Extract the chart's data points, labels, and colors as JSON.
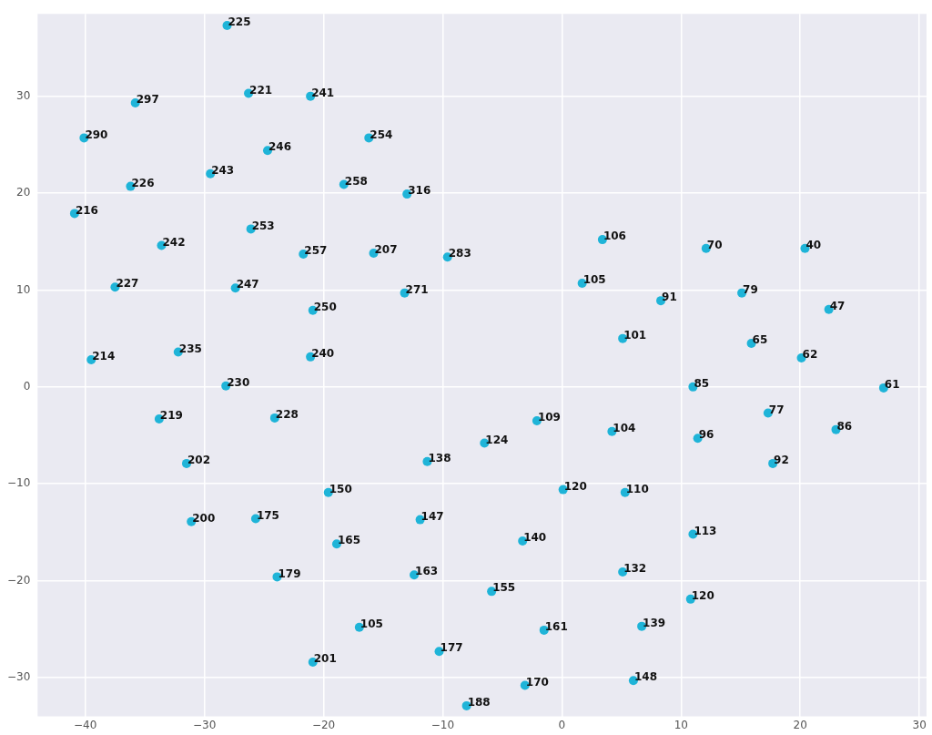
{
  "chart_data": {
    "type": "scatter",
    "xlim": [
      -44,
      30.6
    ],
    "ylim": [
      -34,
      38.5
    ],
    "xticks": [
      -40,
      -30,
      -20,
      -10,
      0,
      10,
      20,
      30
    ],
    "yticks": [
      -30,
      -20,
      -10,
      0,
      10,
      20,
      30
    ],
    "grid": true,
    "marker": "circle",
    "series": [
      {
        "color": "#1fb4d8",
        "x": [
          -28.1,
          -26.3,
          -21.1,
          -35.8,
          -40.1,
          -16.2,
          -24.7,
          -29.5,
          -36.2,
          -18.3,
          -13.0,
          -40.9,
          -26.1,
          -33.6,
          -21.7,
          -15.8,
          -9.6,
          -37.5,
          -27.4,
          -13.2,
          -20.9,
          -39.5,
          -32.2,
          -21.1,
          -28.2,
          -33.8,
          -24.1,
          -31.5,
          -19.6,
          -31.1,
          -25.7,
          -18.9,
          -23.9,
          -17.0,
          -20.9,
          -11.3,
          -11.9,
          -12.4,
          -10.3,
          -8.0,
          -6.5,
          0.1,
          5.3,
          -3.3,
          11.0,
          5.1,
          -5.9,
          10.8,
          -1.5,
          6.7,
          6.0,
          -3.1,
          3.4,
          12.1,
          20.4,
          1.7,
          8.3,
          15.1,
          22.4,
          5.1,
          15.9,
          20.1,
          11.0,
          27.0,
          -2.1,
          4.2,
          17.3,
          23.0,
          11.4,
          17.7
        ],
        "values": [
          37.3,
          30.3,
          30.0,
          29.3,
          25.7,
          25.7,
          24.4,
          22.0,
          20.7,
          20.9,
          19.9,
          17.9,
          16.3,
          14.6,
          13.7,
          13.8,
          13.4,
          10.3,
          10.2,
          9.7,
          7.9,
          2.8,
          3.6,
          3.1,
          0.1,
          -3.3,
          -3.2,
          -7.9,
          -10.9,
          -13.9,
          -13.6,
          -16.2,
          -19.6,
          -24.8,
          -28.4,
          -7.7,
          -13.7,
          -19.4,
          -27.3,
          -32.9,
          -5.8,
          -10.6,
          -10.9,
          -15.9,
          -15.2,
          -19.1,
          -21.1,
          -21.9,
          -25.1,
          -24.7,
          -30.3,
          -30.8,
          15.2,
          14.3,
          14.3,
          10.7,
          8.9,
          9.7,
          8.0,
          5.0,
          4.5,
          3.0,
          0.0,
          -0.1,
          -3.5,
          -4.6,
          -2.7,
          -4.4,
          -5.3,
          -7.9
        ]
      }
    ],
    "annotations": [
      {
        "text": "225",
        "x": -28.1,
        "y": 37.3
      },
      {
        "text": "221",
        "x": -26.3,
        "y": 30.3
      },
      {
        "text": "241",
        "x": -21.1,
        "y": 30.0
      },
      {
        "text": "297",
        "x": -35.8,
        "y": 29.3
      },
      {
        "text": "290",
        "x": -40.1,
        "y": 25.7
      },
      {
        "text": "254",
        "x": -16.2,
        "y": 25.7
      },
      {
        "text": "246",
        "x": -24.7,
        "y": 24.4
      },
      {
        "text": "243",
        "x": -29.5,
        "y": 22.0
      },
      {
        "text": "226",
        "x": -36.2,
        "y": 20.7
      },
      {
        "text": "258",
        "x": -18.3,
        "y": 20.9
      },
      {
        "text": "316",
        "x": -13.0,
        "y": 19.9
      },
      {
        "text": "216",
        "x": -40.9,
        "y": 17.9
      },
      {
        "text": "253",
        "x": -26.1,
        "y": 16.3
      },
      {
        "text": "242",
        "x": -33.6,
        "y": 14.6
      },
      {
        "text": "257",
        "x": -21.7,
        "y": 13.7
      },
      {
        "text": "207",
        "x": -15.8,
        "y": 13.8
      },
      {
        "text": "283",
        "x": -9.6,
        "y": 13.4
      },
      {
        "text": "227",
        "x": -37.5,
        "y": 10.3
      },
      {
        "text": "247",
        "x": -27.4,
        "y": 10.2
      },
      {
        "text": "271",
        "x": -13.2,
        "y": 9.7
      },
      {
        "text": "250",
        "x": -20.9,
        "y": 7.9
      },
      {
        "text": "214",
        "x": -39.5,
        "y": 2.8
      },
      {
        "text": "235",
        "x": -32.2,
        "y": 3.6
      },
      {
        "text": "240",
        "x": -21.1,
        "y": 3.1
      },
      {
        "text": "230",
        "x": -28.2,
        "y": 0.1
      },
      {
        "text": "219",
        "x": -33.8,
        "y": -3.3
      },
      {
        "text": "228",
        "x": -24.1,
        "y": -3.2
      },
      {
        "text": "202",
        "x": -31.5,
        "y": -7.9
      },
      {
        "text": "150",
        "x": -19.6,
        "y": -10.9
      },
      {
        "text": "200",
        "x": -31.1,
        "y": -13.9
      },
      {
        "text": "175",
        "x": -25.7,
        "y": -13.6
      },
      {
        "text": "165",
        "x": -18.9,
        "y": -16.2
      },
      {
        "text": "179",
        "x": -23.9,
        "y": -19.6
      },
      {
        "text": "105",
        "x": -17.0,
        "y": -24.8
      },
      {
        "text": "201",
        "x": -20.9,
        "y": -28.4
      },
      {
        "text": "138",
        "x": -11.3,
        "y": -7.7
      },
      {
        "text": "147",
        "x": -11.9,
        "y": -13.7
      },
      {
        "text": "163",
        "x": -12.4,
        "y": -19.4
      },
      {
        "text": "177",
        "x": -10.3,
        "y": -27.3
      },
      {
        "text": "188",
        "x": -8.0,
        "y": -32.9
      },
      {
        "text": "124",
        "x": -6.5,
        "y": -5.8
      },
      {
        "text": "120",
        "x": 0.1,
        "y": -10.6
      },
      {
        "text": "110",
        "x": 5.3,
        "y": -10.9
      },
      {
        "text": "140",
        "x": -3.3,
        "y": -15.9
      },
      {
        "text": "113",
        "x": 11.0,
        "y": -15.2
      },
      {
        "text": "132",
        "x": 5.1,
        "y": -19.1
      },
      {
        "text": "155",
        "x": -5.9,
        "y": -21.1
      },
      {
        "text": "120",
        "x": 10.8,
        "y": -21.9
      },
      {
        "text": "161",
        "x": -1.5,
        "y": -25.1
      },
      {
        "text": "139",
        "x": 6.7,
        "y": -24.7
      },
      {
        "text": "148",
        "x": 6.0,
        "y": -30.3
      },
      {
        "text": "170",
        "x": -3.1,
        "y": -30.8
      },
      {
        "text": "106",
        "x": 3.4,
        "y": 15.2
      },
      {
        "text": "70",
        "x": 12.1,
        "y": 14.3
      },
      {
        "text": "40",
        "x": 20.4,
        "y": 14.3
      },
      {
        "text": "105",
        "x": 1.7,
        "y": 10.7
      },
      {
        "text": "91",
        "x": 8.3,
        "y": 8.9
      },
      {
        "text": "79",
        "x": 15.1,
        "y": 9.7
      },
      {
        "text": "47",
        "x": 22.4,
        "y": 8.0
      },
      {
        "text": "101",
        "x": 5.1,
        "y": 5.0
      },
      {
        "text": "65",
        "x": 15.9,
        "y": 4.5
      },
      {
        "text": "62",
        "x": 20.1,
        "y": 3.0
      },
      {
        "text": "85",
        "x": 11.0,
        "y": 0.0
      },
      {
        "text": "61",
        "x": 27.0,
        "y": -0.1
      },
      {
        "text": "109",
        "x": -2.1,
        "y": -3.5
      },
      {
        "text": "104",
        "x": 4.2,
        "y": -4.6
      },
      {
        "text": "77",
        "x": 17.3,
        "y": -2.7
      },
      {
        "text": "86",
        "x": 23.0,
        "y": -4.4
      },
      {
        "text": "96",
        "x": 11.4,
        "y": -5.3
      },
      {
        "text": "92",
        "x": 17.7,
        "y": -7.9
      }
    ]
  }
}
